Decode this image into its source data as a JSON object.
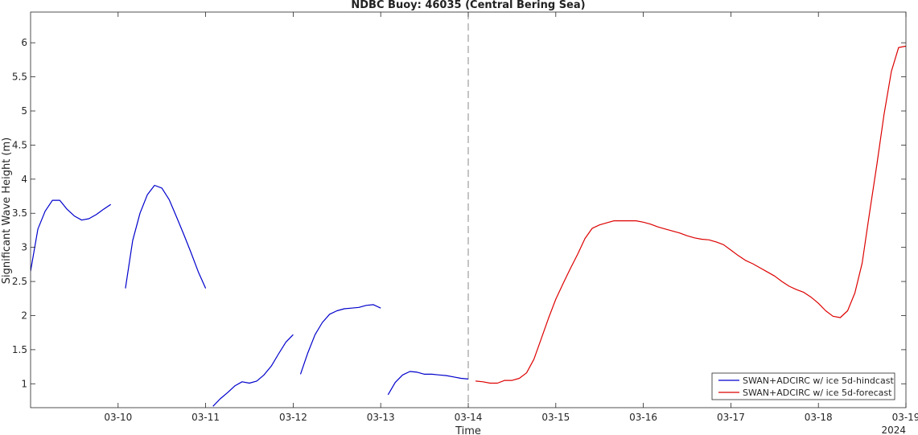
{
  "chart_data": {
    "type": "line",
    "title": "NDBC Buoy: 46035 (Central Bering Sea)",
    "xlabel": "Time",
    "ylabel": "Significant Wave Height (m)",
    "year_label": "2024",
    "xlim": [
      "2024-03-09",
      "2024-03-19"
    ],
    "ylim": [
      0.65,
      6.45
    ],
    "x_ticks": [
      "03-10",
      "03-11",
      "03-12",
      "03-13",
      "03-14",
      "03-15",
      "03-16",
      "03-17",
      "03-18",
      "03-19"
    ],
    "y_ticks": [
      "1",
      "1.5",
      "2",
      "2.5",
      "3",
      "3.5",
      "4",
      "4.5",
      "5",
      "5.5",
      "6"
    ],
    "grid": false,
    "legend_position": "bottom-right",
    "vline": {
      "x": "2024-03-14",
      "style": "dashed",
      "color": "#888888"
    },
    "series": [
      {
        "name": "SWAN+ADCIRC w/ ice 5d-hindcast",
        "color": "#0000cc",
        "segments": [
          [
            [
              "2024-03-09 00:00",
              2.65
            ],
            [
              "2024-03-09 02:00",
              3.27
            ],
            [
              "2024-03-09 04:00",
              3.53
            ],
            [
              "2024-03-09 06:00",
              3.69
            ],
            [
              "2024-03-09 08:00",
              3.69
            ],
            [
              "2024-03-09 10:00",
              3.56
            ],
            [
              "2024-03-09 12:00",
              3.46
            ],
            [
              "2024-03-09 14:00",
              3.4
            ],
            [
              "2024-03-09 16:00",
              3.42
            ],
            [
              "2024-03-09 18:00",
              3.48
            ],
            [
              "2024-03-09 20:00",
              3.56
            ],
            [
              "2024-03-09 22:00",
              3.63
            ]
          ],
          [
            [
              "2024-03-10 02:00",
              2.4
            ],
            [
              "2024-03-10 04:00",
              3.1
            ],
            [
              "2024-03-10 06:00",
              3.5
            ],
            [
              "2024-03-10 08:00",
              3.77
            ],
            [
              "2024-03-10 10:00",
              3.91
            ],
            [
              "2024-03-10 12:00",
              3.87
            ],
            [
              "2024-03-10 14:00",
              3.7
            ],
            [
              "2024-03-10 16:00",
              3.45
            ],
            [
              "2024-03-10 18:00",
              3.19
            ],
            [
              "2024-03-10 20:00",
              2.92
            ],
            [
              "2024-03-10 22:00",
              2.64
            ],
            [
              "2024-03-11 00:00",
              2.4
            ]
          ],
          [
            [
              "2024-03-11 02:00",
              0.67
            ],
            [
              "2024-03-11 04:00",
              0.78
            ],
            [
              "2024-03-11 06:00",
              0.87
            ],
            [
              "2024-03-11 08:00",
              0.97
            ],
            [
              "2024-03-11 10:00",
              1.03
            ],
            [
              "2024-03-11 12:00",
              1.01
            ],
            [
              "2024-03-11 14:00",
              1.04
            ],
            [
              "2024-03-11 16:00",
              1.13
            ],
            [
              "2024-03-11 18:00",
              1.26
            ],
            [
              "2024-03-11 20:00",
              1.44
            ],
            [
              "2024-03-11 22:00",
              1.61
            ],
            [
              "2024-03-12 00:00",
              1.72
            ]
          ],
          [
            [
              "2024-03-12 02:00",
              1.14
            ],
            [
              "2024-03-12 04:00",
              1.45
            ],
            [
              "2024-03-12 06:00",
              1.72
            ],
            [
              "2024-03-12 08:00",
              1.9
            ],
            [
              "2024-03-12 10:00",
              2.02
            ],
            [
              "2024-03-12 12:00",
              2.07
            ],
            [
              "2024-03-12 14:00",
              2.1
            ],
            [
              "2024-03-12 16:00",
              2.11
            ],
            [
              "2024-03-12 18:00",
              2.12
            ],
            [
              "2024-03-12 20:00",
              2.15
            ],
            [
              "2024-03-12 22:00",
              2.16
            ],
            [
              "2024-03-13 00:00",
              2.11
            ]
          ],
          [
            [
              "2024-03-13 02:00",
              0.84
            ],
            [
              "2024-03-13 04:00",
              1.02
            ],
            [
              "2024-03-13 06:00",
              1.13
            ],
            [
              "2024-03-13 08:00",
              1.18
            ],
            [
              "2024-03-13 10:00",
              1.17
            ],
            [
              "2024-03-13 12:00",
              1.14
            ],
            [
              "2024-03-13 14:00",
              1.14
            ],
            [
              "2024-03-13 16:00",
              1.13
            ],
            [
              "2024-03-13 18:00",
              1.12
            ],
            [
              "2024-03-13 20:00",
              1.1
            ],
            [
              "2024-03-13 22:00",
              1.08
            ],
            [
              "2024-03-14 00:00",
              1.07
            ]
          ]
        ]
      },
      {
        "name": "SWAN+ADCIRC w/ ice 5d-forecast",
        "color": "#dd0000",
        "segments": [
          [
            [
              "2024-03-14 02:00",
              1.04
            ],
            [
              "2024-03-14 04:00",
              1.03
            ],
            [
              "2024-03-14 06:00",
              1.01
            ],
            [
              "2024-03-14 08:00",
              1.01
            ],
            [
              "2024-03-14 10:00",
              1.05
            ],
            [
              "2024-03-14 12:00",
              1.05
            ],
            [
              "2024-03-14 14:00",
              1.08
            ],
            [
              "2024-03-14 16:00",
              1.16
            ],
            [
              "2024-03-14 18:00",
              1.36
            ],
            [
              "2024-03-14 20:00",
              1.66
            ],
            [
              "2024-03-14 22:00",
              1.96
            ],
            [
              "2024-03-15 00:00",
              2.24
            ],
            [
              "2024-03-15 02:00",
              2.47
            ],
            [
              "2024-03-15 04:00",
              2.69
            ],
            [
              "2024-03-15 06:00",
              2.9
            ],
            [
              "2024-03-15 08:00",
              3.13
            ],
            [
              "2024-03-15 10:00",
              3.28
            ],
            [
              "2024-03-15 12:00",
              3.33
            ],
            [
              "2024-03-15 14:00",
              3.36
            ],
            [
              "2024-03-15 16:00",
              3.39
            ],
            [
              "2024-03-15 18:00",
              3.39
            ],
            [
              "2024-03-15 20:00",
              3.39
            ],
            [
              "2024-03-15 22:00",
              3.39
            ],
            [
              "2024-03-16 00:00",
              3.37
            ],
            [
              "2024-03-16 02:00",
              3.34
            ],
            [
              "2024-03-16 04:00",
              3.3
            ],
            [
              "2024-03-16 06:00",
              3.27
            ],
            [
              "2024-03-16 08:00",
              3.24
            ],
            [
              "2024-03-16 10:00",
              3.21
            ],
            [
              "2024-03-16 12:00",
              3.17
            ],
            [
              "2024-03-16 14:00",
              3.14
            ],
            [
              "2024-03-16 16:00",
              3.12
            ],
            [
              "2024-03-16 18:00",
              3.11
            ],
            [
              "2024-03-16 20:00",
              3.08
            ],
            [
              "2024-03-16 22:00",
              3.04
            ],
            [
              "2024-03-17 00:00",
              2.96
            ],
            [
              "2024-03-17 02:00",
              2.88
            ],
            [
              "2024-03-17 04:00",
              2.81
            ],
            [
              "2024-03-17 06:00",
              2.76
            ],
            [
              "2024-03-17 08:00",
              2.7
            ],
            [
              "2024-03-17 10:00",
              2.64
            ],
            [
              "2024-03-17 12:00",
              2.58
            ],
            [
              "2024-03-17 14:00",
              2.5
            ],
            [
              "2024-03-17 16:00",
              2.43
            ],
            [
              "2024-03-17 18:00",
              2.38
            ],
            [
              "2024-03-17 20:00",
              2.34
            ],
            [
              "2024-03-17 22:00",
              2.27
            ],
            [
              "2024-03-18 00:00",
              2.18
            ],
            [
              "2024-03-18 02:00",
              2.07
            ],
            [
              "2024-03-18 04:00",
              1.99
            ],
            [
              "2024-03-18 06:00",
              1.97
            ],
            [
              "2024-03-18 08:00",
              2.07
            ],
            [
              "2024-03-18 10:00",
              2.33
            ],
            [
              "2024-03-18 12:00",
              2.77
            ],
            [
              "2024-03-18 14:00",
              3.5
            ],
            [
              "2024-03-18 16:00",
              4.2
            ],
            [
              "2024-03-18 18:00",
              4.95
            ],
            [
              "2024-03-18 20:00",
              5.58
            ],
            [
              "2024-03-18 22:00",
              5.93
            ],
            [
              "2024-03-19 00:00",
              5.95
            ],
            [
              "2024-03-19 02:00",
              5.62
            ]
          ]
        ]
      }
    ]
  }
}
